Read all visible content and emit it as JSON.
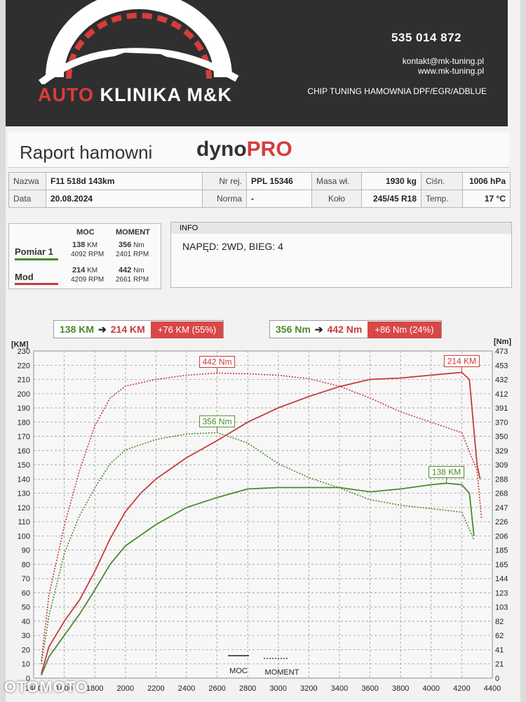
{
  "header": {
    "brand_prefix": "AUTO",
    "brand_rest": "KLINIKA M&K",
    "phone": "535 014 872",
    "email": "kontakt@mk-tuning.pl",
    "website": "www.mk-tuning.pl",
    "services": "CHIP TUNING HAMOWNIA DPF/EGR/ADBLUE"
  },
  "report": {
    "title": "Raport hamowni",
    "dyno_name": "dyno",
    "dyno_suffix": "PRO"
  },
  "meta": {
    "name_label": "Nazwa",
    "name_value": "F11 518d 143km",
    "date_label": "Data",
    "date_value": "20.08.2024",
    "reg_label": "Nr rej.",
    "reg_value": "PPL 15346",
    "norm_label": "Norma",
    "norm_value": "-",
    "mass_label": "Masa wł.",
    "mass_value": "1930 kg",
    "wheel_label": "Koło",
    "wheel_value": "245/45 R18",
    "pressure_label": "Ciśn.",
    "pressure_value": "1006 hPa",
    "temp_label": "Temp.",
    "temp_value": "17 °C"
  },
  "summary": {
    "col_power": "MOC",
    "col_torque": "MOMENT",
    "rows": [
      {
        "label": "Pomiar 1",
        "power": "138",
        "power_unit": "KM",
        "power_rpm": "4092 RPM",
        "torque": "356",
        "torque_unit": "Nm",
        "torque_rpm": "2401 RPM"
      },
      {
        "label": "Mod",
        "power": "214",
        "power_unit": "KM",
        "power_rpm": "4209 RPM",
        "torque": "442",
        "torque_unit": "Nm",
        "torque_rpm": "2661 RPM"
      }
    ]
  },
  "info": {
    "heading": "INFO",
    "text": "NAPĘD: 2WD,  BIEG: 4"
  },
  "badges": {
    "power_before": "138 KM",
    "power_after": "214 KM",
    "power_delta": "+76 KM  (55%)",
    "torque_before": "356 Nm",
    "torque_after": "442 Nm",
    "torque_delta": "+86 Nm  (24%)",
    "arrow": "➔"
  },
  "legend": {
    "moc": "MOC",
    "moment": "MOMENT"
  },
  "watermark": "OTOMOTO",
  "colors": {
    "green": "#4a8a2c",
    "red": "#c83a3a"
  },
  "chart_data": {
    "type": "line",
    "x_unit": "RPM",
    "xlim": [
      1400,
      4400
    ],
    "x_ticks": [
      1400,
      1600,
      1800,
      2000,
      2200,
      2400,
      2600,
      2800,
      3000,
      3200,
      3400,
      3600,
      3800,
      4000,
      4200,
      4400
    ],
    "ylabel_left": "[KM]",
    "ylim_left": [
      0,
      230
    ],
    "y_ticks_left": [
      0,
      10,
      20,
      30,
      40,
      50,
      60,
      70,
      80,
      90,
      100,
      110,
      120,
      130,
      140,
      150,
      160,
      170,
      180,
      190,
      200,
      210,
      220,
      230
    ],
    "ylabel_right": "[Nm]",
    "ylim_right": [
      0,
      473
    ],
    "y_ticks_right": [
      0,
      21,
      41,
      62,
      82,
      103,
      123,
      144,
      165,
      185,
      206,
      226,
      247,
      268,
      288,
      309,
      329,
      350,
      370,
      391,
      412,
      432,
      453,
      473
    ],
    "grid": true,
    "series": [
      {
        "name": "Pomiar 1",
        "kind": "MOC",
        "axis": "left",
        "color": "#4a8a2c",
        "dashed": false,
        "points": [
          [
            1450,
            2
          ],
          [
            1500,
            15
          ],
          [
            1600,
            30
          ],
          [
            1700,
            45
          ],
          [
            1800,
            62
          ],
          [
            1900,
            80
          ],
          [
            2000,
            93
          ],
          [
            2200,
            108
          ],
          [
            2400,
            120
          ],
          [
            2600,
            127
          ],
          [
            2800,
            133
          ],
          [
            3000,
            134
          ],
          [
            3200,
            134
          ],
          [
            3400,
            134
          ],
          [
            3600,
            131
          ],
          [
            3800,
            133
          ],
          [
            4000,
            136
          ],
          [
            4100,
            137
          ],
          [
            4200,
            136
          ],
          [
            4250,
            130
          ],
          [
            4280,
            100
          ]
        ],
        "peak_label": "138 KM"
      },
      {
        "name": "Mod",
        "kind": "MOC",
        "axis": "left",
        "color": "#c83a3a",
        "dashed": false,
        "points": [
          [
            1450,
            3
          ],
          [
            1500,
            22
          ],
          [
            1600,
            40
          ],
          [
            1700,
            55
          ],
          [
            1800,
            75
          ],
          [
            1900,
            98
          ],
          [
            2000,
            117
          ],
          [
            2100,
            130
          ],
          [
            2200,
            140
          ],
          [
            2400,
            155
          ],
          [
            2600,
            167
          ],
          [
            2800,
            180
          ],
          [
            3000,
            190
          ],
          [
            3200,
            198
          ],
          [
            3400,
            205
          ],
          [
            3600,
            210
          ],
          [
            3800,
            211
          ],
          [
            4000,
            213
          ],
          [
            4200,
            215
          ],
          [
            4250,
            210
          ],
          [
            4300,
            150
          ],
          [
            4320,
            140
          ]
        ],
        "peak_label": "214 KM"
      },
      {
        "name": "Pomiar 1",
        "kind": "MOMENT",
        "axis": "right",
        "color": "#4a8a2c",
        "dashed": true,
        "points": [
          [
            1450,
            20
          ],
          [
            1500,
            90
          ],
          [
            1600,
            180
          ],
          [
            1700,
            235
          ],
          [
            1800,
            275
          ],
          [
            1900,
            310
          ],
          [
            2000,
            330
          ],
          [
            2200,
            345
          ],
          [
            2400,
            353
          ],
          [
            2600,
            355
          ],
          [
            2800,
            340
          ],
          [
            3000,
            310
          ],
          [
            3200,
            290
          ],
          [
            3400,
            275
          ],
          [
            3600,
            258
          ],
          [
            3800,
            250
          ],
          [
            4000,
            245
          ],
          [
            4200,
            240
          ],
          [
            4280,
            200
          ]
        ],
        "peak_label": "356 Nm"
      },
      {
        "name": "Mod",
        "kind": "MOMENT",
        "axis": "right",
        "color": "#c83a3a",
        "dashed": true,
        "points": [
          [
            1450,
            25
          ],
          [
            1500,
            120
          ],
          [
            1600,
            220
          ],
          [
            1700,
            300
          ],
          [
            1800,
            365
          ],
          [
            1900,
            405
          ],
          [
            2000,
            422
          ],
          [
            2200,
            432
          ],
          [
            2400,
            438
          ],
          [
            2600,
            441
          ],
          [
            2800,
            440
          ],
          [
            3000,
            438
          ],
          [
            3200,
            433
          ],
          [
            3400,
            422
          ],
          [
            3600,
            405
          ],
          [
            3800,
            385
          ],
          [
            4000,
            370
          ],
          [
            4200,
            355
          ],
          [
            4300,
            300
          ],
          [
            4330,
            230
          ]
        ],
        "peak_label": "442 Nm"
      }
    ]
  }
}
